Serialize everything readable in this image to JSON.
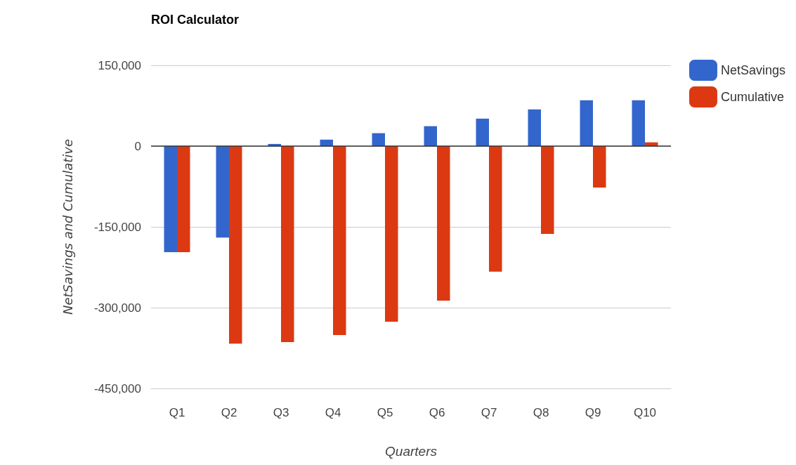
{
  "chart_data": {
    "type": "bar",
    "title": "ROI Calculator",
    "xlabel": "Quarters",
    "ylabel": "NetSavings and Cumulative",
    "categories": [
      "Q1",
      "Q2",
      "Q3",
      "Q4",
      "Q5",
      "Q6",
      "Q7",
      "Q8",
      "Q9",
      "Q10"
    ],
    "series": [
      {
        "name": "NetSavings",
        "color": "#3366cc",
        "values": [
          -197000,
          -170000,
          4000,
          12000,
          24000,
          37000,
          51000,
          68000,
          85000,
          85000
        ]
      },
      {
        "name": "Cumulative",
        "color": "#dc3912",
        "values": [
          -197000,
          -367000,
          -364000,
          -351000,
          -326000,
          -287000,
          -233000,
          -163000,
          -77000,
          7000
        ]
      }
    ],
    "ylim": [
      -450000,
      150000
    ],
    "yticks": [
      {
        "value": -450000,
        "label": "-450,000"
      },
      {
        "value": -300000,
        "label": "-300,000"
      },
      {
        "value": -150000,
        "label": "-150,000"
      },
      0,
      {
        "value": 150000,
        "label": "150,000"
      }
    ],
    "grid": "y",
    "legend": "right"
  }
}
